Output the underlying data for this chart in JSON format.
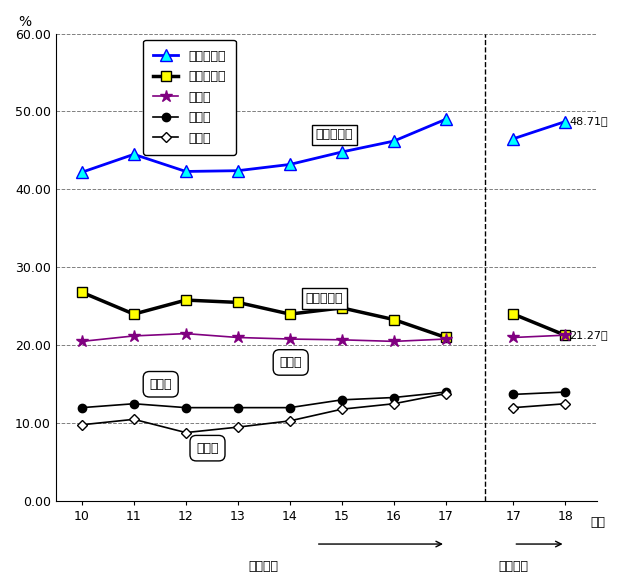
{
  "title": "",
  "ylabel": "%",
  "ylim": [
    0.0,
    60.0
  ],
  "ytick_labels": [
    "0.00",
    "10.00",
    "20.00",
    "30.00",
    "40.00",
    "50.00",
    "60.00"
  ],
  "ytick_values": [
    0.0,
    10.0,
    20.0,
    30.0,
    40.0,
    50.0,
    60.0
  ],
  "years_old": [
    10,
    11,
    12,
    13,
    14,
    15,
    16,
    17
  ],
  "years_new": [
    17,
    18
  ],
  "gimu_old": [
    42.2,
    44.5,
    42.3,
    42.4,
    43.2,
    44.8,
    46.2,
    49.0
  ],
  "gimu_new": [
    46.5,
    48.71
  ],
  "toshi_old": [
    26.8,
    24.0,
    25.8,
    25.5,
    24.0,
    24.8,
    23.3,
    21.0
  ],
  "toshi_new": [
    24.0,
    21.27
  ],
  "jinken_old": [
    20.5,
    21.2,
    21.5,
    21.0,
    20.8,
    20.7,
    20.5,
    20.8
  ],
  "jinken_new": [
    21.0,
    21.3
  ],
  "kofu_old": [
    12.0,
    12.5,
    12.0,
    12.0,
    12.0,
    13.0,
    13.3,
    14.0
  ],
  "kofu_new": [
    13.7,
    14.0
  ],
  "fujo_old": [
    9.8,
    10.5,
    8.8,
    9.5,
    10.3,
    11.8,
    12.5,
    13.8
  ],
  "fujo_new": [
    12.0,
    12.5
  ],
  "label_gimu": "義務的経費",
  "label_toshi": "投資的経費",
  "label_jinken": "人件費",
  "label_kofu": "公債費",
  "label_fujo": "扶助費",
  "ann_gimu": "義務的経費",
  "ann_toshi": "投資的経費",
  "ann_jinken": "人件費",
  "ann_kofu": "公債費",
  "ann_fujo": "扶助費",
  "text_48_71": "48.71％",
  "text_21_27": "21.27％",
  "xlabel_old": "旧浜松市",
  "xlabel_new": "新浜松市",
  "xlabel_nendo": "年度",
  "bg_color": "#ffffff",
  "color_gimu": "#0000ff",
  "color_toshi": "#000000",
  "color_jinken": "#800080",
  "color_kofu": "#000000",
  "color_fujo": "#000000",
  "color_grid": "#808080"
}
